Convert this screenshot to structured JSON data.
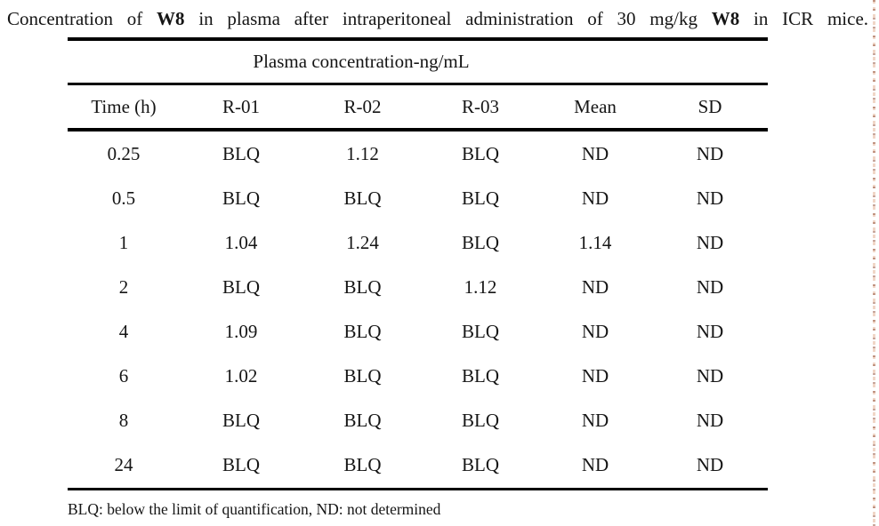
{
  "page": {
    "caption": {
      "s1": "Concentration of",
      "s2": "W8",
      "s3": "in plasma after intraperitoneal administration of 30 mg/kg",
      "s4": "W8",
      "s5": "in ICR mice."
    },
    "table": {
      "span_header": "Plasma concentration-ng/mL",
      "columns": [
        "Time (h)",
        "R-01",
        "R-02",
        "R-03",
        "Mean",
        "SD"
      ],
      "rows": [
        [
          "0.25",
          "BLQ",
          "1.12",
          "BLQ",
          "ND",
          "ND"
        ],
        [
          "0.5",
          "BLQ",
          "BLQ",
          "BLQ",
          "ND",
          "ND"
        ],
        [
          "1",
          "1.04",
          "1.24",
          "BLQ",
          "1.14",
          "ND"
        ],
        [
          "2",
          "BLQ",
          "BLQ",
          "1.12",
          "ND",
          "ND"
        ],
        [
          "4",
          "1.09",
          "BLQ",
          "BLQ",
          "ND",
          "ND"
        ],
        [
          "6",
          "1.02",
          "BLQ",
          "BLQ",
          "ND",
          "ND"
        ],
        [
          "8",
          "BLQ",
          "BLQ",
          "BLQ",
          "ND",
          "ND"
        ],
        [
          "24",
          "BLQ",
          "BLQ",
          "BLQ",
          "ND",
          "ND"
        ]
      ]
    },
    "footnote": "BLQ: below the limit of quantification, ND: not determined",
    "colors": {
      "background": "#ffffff",
      "text": "#151515",
      "rule": "#000000",
      "edge_dots": "#e8c2ad"
    }
  },
  "chart_data": {
    "type": "table",
    "title": "Concentration of W8 in plasma after intraperitoneal administration of 30 mg/kg W8 in ICR mice.",
    "span_header": "Plasma concentration-ng/mL",
    "columns": [
      "Time (h)",
      "R-01",
      "R-02",
      "R-03",
      "Mean",
      "SD"
    ],
    "rows": [
      [
        "0.25",
        "BLQ",
        "1.12",
        "BLQ",
        "ND",
        "ND"
      ],
      [
        "0.5",
        "BLQ",
        "BLQ",
        "BLQ",
        "ND",
        "ND"
      ],
      [
        "1",
        "1.04",
        "1.24",
        "BLQ",
        "1.14",
        "ND"
      ],
      [
        "2",
        "BLQ",
        "BLQ",
        "1.12",
        "ND",
        "ND"
      ],
      [
        "4",
        "1.09",
        "BLQ",
        "BLQ",
        "ND",
        "ND"
      ],
      [
        "6",
        "1.02",
        "BLQ",
        "BLQ",
        "ND",
        "ND"
      ],
      [
        "8",
        "BLQ",
        "BLQ",
        "BLQ",
        "ND",
        "ND"
      ],
      [
        "24",
        "BLQ",
        "BLQ",
        "BLQ",
        "ND",
        "ND"
      ]
    ],
    "footnote": "BLQ: below the limit of quantification, ND: not determined"
  }
}
